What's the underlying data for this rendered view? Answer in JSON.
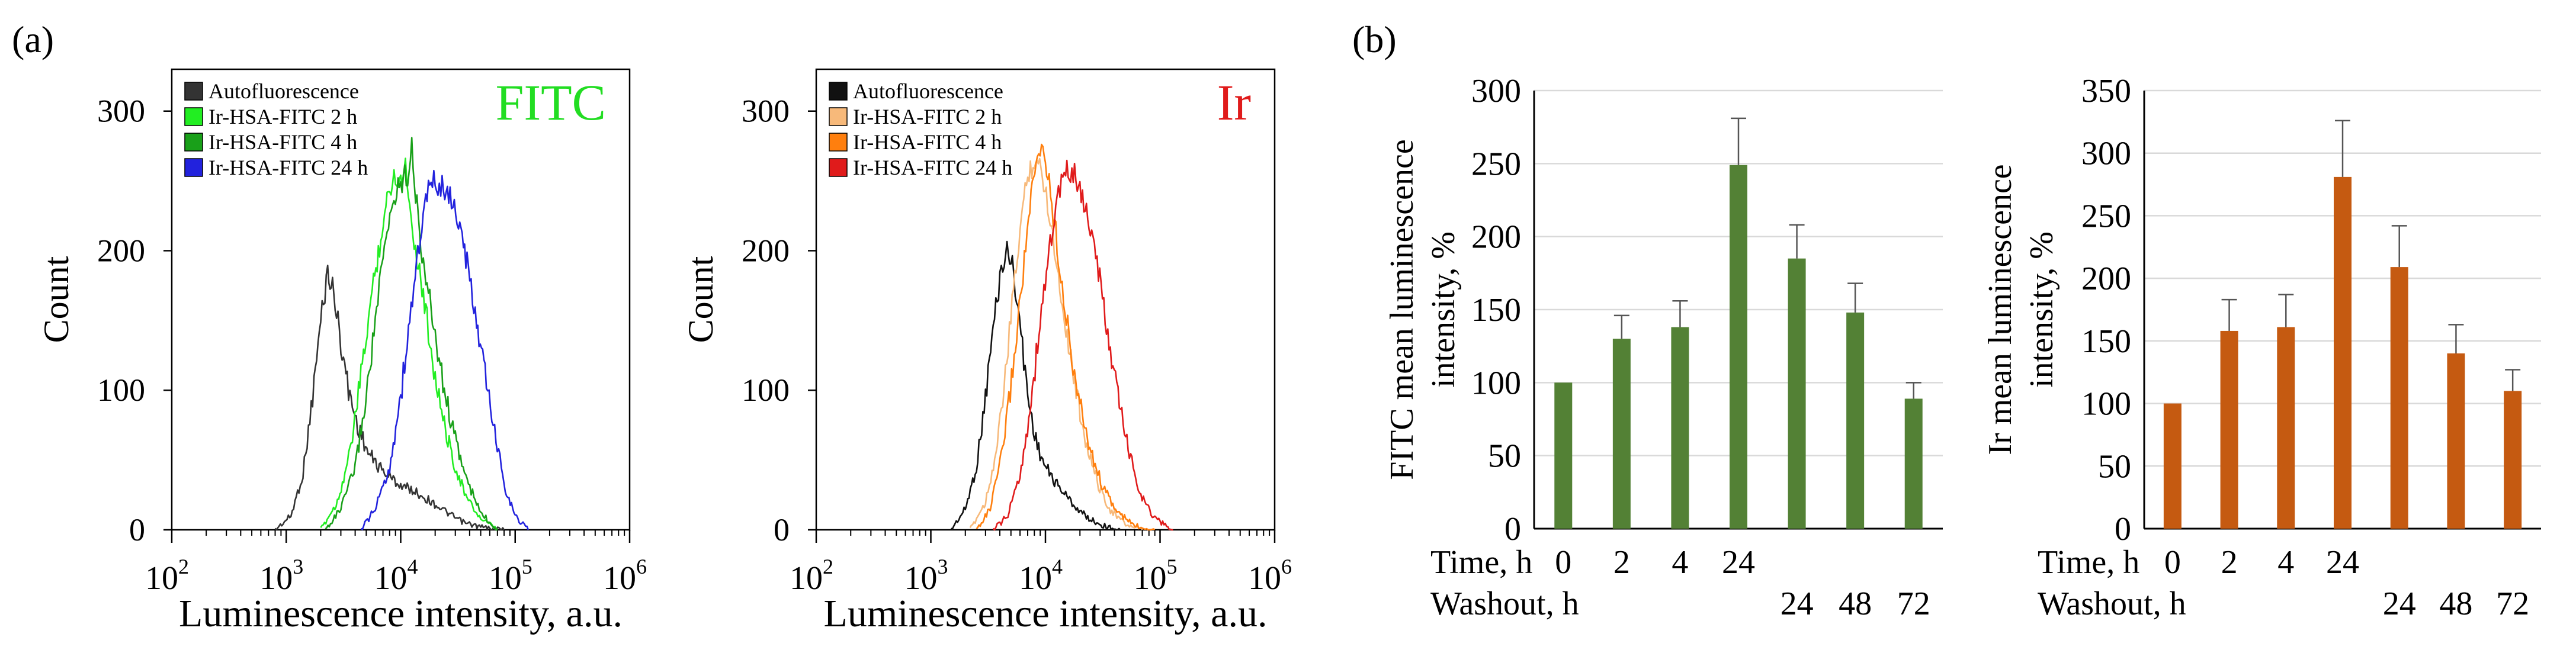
{
  "panels": {
    "a_label": "(a)",
    "b_label": "(b)"
  },
  "chart_data": [
    {
      "id": "hist-fitc",
      "type": "line",
      "title": "FITC",
      "title_color": "#22dd22",
      "xlabel": "Luminescence intensity, a.u.",
      "ylabel": "Count",
      "xscale": "log",
      "xlim": [
        100,
        1000000
      ],
      "ylim": [
        0,
        330
      ],
      "yticks": [
        0,
        100,
        200,
        300
      ],
      "xticks": [
        {
          "value": 100,
          "base": "10",
          "exp": "2"
        },
        {
          "value": 1000,
          "base": "10",
          "exp": "3"
        },
        {
          "value": 10000,
          "base": "10",
          "exp": "4"
        },
        {
          "value": 100000,
          "base": "10",
          "exp": "5"
        },
        {
          "value": 1000000,
          "base": "10",
          "exp": "6"
        }
      ],
      "legend_position": "top-left",
      "series": [
        {
          "name": "Autofluorescence",
          "color": "#333333",
          "points": [
            [
              800,
              0
            ],
            [
              1100,
              10
            ],
            [
              1400,
              40
            ],
            [
              1700,
              95
            ],
            [
              2000,
              150
            ],
            [
              2300,
              185
            ],
            [
              2600,
              170
            ],
            [
              3000,
              135
            ],
            [
              3500,
              100
            ],
            [
              4200,
              75
            ],
            [
              5200,
              55
            ],
            [
              6500,
              45
            ],
            [
              8000,
              38
            ],
            [
              10000,
              32
            ],
            [
              13000,
              28
            ],
            [
              17000,
              22
            ],
            [
              22000,
              16
            ],
            [
              28000,
              10
            ],
            [
              36000,
              5
            ],
            [
              50000,
              2
            ],
            [
              80000,
              0
            ]
          ]
        },
        {
          "name": "Ir-HSA-FITC 2 h",
          "color": "#22ee22",
          "points": [
            [
              2000,
              0
            ],
            [
              2800,
              20
            ],
            [
              3600,
              55
            ],
            [
              4500,
              110
            ],
            [
              5500,
              165
            ],
            [
              6700,
              210
            ],
            [
              8000,
              245
            ],
            [
              9000,
              255
            ],
            [
              10000,
              250
            ],
            [
              11000,
              262
            ],
            [
              12000,
              235
            ],
            [
              13500,
              200
            ],
            [
              15000,
              180
            ],
            [
              17000,
              150
            ],
            [
              20000,
              110
            ],
            [
              24000,
              75
            ],
            [
              30000,
              45
            ],
            [
              38000,
              22
            ],
            [
              50000,
              8
            ],
            [
              70000,
              0
            ]
          ]
        },
        {
          "name": "Ir-HSA-FITC 4 h",
          "color": "#19a019",
          "points": [
            [
              2200,
              0
            ],
            [
              3000,
              15
            ],
            [
              4000,
              45
            ],
            [
              5000,
              95
            ],
            [
              6000,
              150
            ],
            [
              7200,
              200
            ],
            [
              8500,
              235
            ],
            [
              10000,
              250
            ],
            [
              11500,
              255
            ],
            [
              12500,
              278
            ],
            [
              13500,
              240
            ],
            [
              15000,
              205
            ],
            [
              17000,
              175
            ],
            [
              20000,
              140
            ],
            [
              24000,
              100
            ],
            [
              30000,
              65
            ],
            [
              38000,
              35
            ],
            [
              50000,
              12
            ],
            [
              70000,
              0
            ]
          ]
        },
        {
          "name": "Ir-HSA-FITC 24 h",
          "color": "#2222dd",
          "points": [
            [
              4500,
              0
            ],
            [
              6000,
              15
            ],
            [
              8000,
              45
            ],
            [
              10000,
              95
            ],
            [
              12000,
              150
            ],
            [
              14500,
              205
            ],
            [
              17000,
              240
            ],
            [
              20000,
              250
            ],
            [
              23000,
              245
            ],
            [
              27000,
              240
            ],
            [
              32000,
              220
            ],
            [
              38000,
              190
            ],
            [
              46000,
              150
            ],
            [
              56000,
              105
            ],
            [
              68000,
              65
            ],
            [
              82000,
              30
            ],
            [
              100000,
              10
            ],
            [
              130000,
              0
            ]
          ]
        }
      ]
    },
    {
      "id": "hist-ir",
      "type": "line",
      "title": "Ir",
      "title_color": "#e01b1b",
      "xlabel": "Luminescence intensity, a.u.",
      "ylabel": "Count",
      "xscale": "log",
      "xlim": [
        100,
        1000000
      ],
      "ylim": [
        0,
        330
      ],
      "yticks": [
        0,
        100,
        200,
        300
      ],
      "xticks": [
        {
          "value": 100,
          "base": "10",
          "exp": "2"
        },
        {
          "value": 1000,
          "base": "10",
          "exp": "3"
        },
        {
          "value": 10000,
          "base": "10",
          "exp": "4"
        },
        {
          "value": 100000,
          "base": "10",
          "exp": "5"
        },
        {
          "value": 1000000,
          "base": "10",
          "exp": "6"
        }
      ],
      "legend_position": "top-left",
      "series": [
        {
          "name": "Autofluorescence",
          "color": "#111111",
          "points": [
            [
              1500,
              0
            ],
            [
              2000,
              15
            ],
            [
              2500,
              45
            ],
            [
              3000,
              95
            ],
            [
              3500,
              145
            ],
            [
              4000,
              180
            ],
            [
              4500,
              200
            ],
            [
              5000,
              195
            ],
            [
              5600,
              170
            ],
            [
              6300,
              130
            ],
            [
              7200,
              90
            ],
            [
              8500,
              60
            ],
            [
              10000,
              45
            ],
            [
              12000,
              35
            ],
            [
              15000,
              25
            ],
            [
              19000,
              15
            ],
            [
              24000,
              8
            ],
            [
              32000,
              3
            ],
            [
              45000,
              0
            ]
          ]
        },
        {
          "name": "Ir-HSA-FITC 2 h",
          "color": "#f7b97a",
          "points": [
            [
              2200,
              0
            ],
            [
              3000,
              20
            ],
            [
              3800,
              60
            ],
            [
              4600,
              120
            ],
            [
              5400,
              180
            ],
            [
              6300,
              230
            ],
            [
              7200,
              258
            ],
            [
              8200,
              265
            ],
            [
              9400,
              255
            ],
            [
              11000,
              225
            ],
            [
              13000,
              180
            ],
            [
              15500,
              140
            ],
            [
              19000,
              95
            ],
            [
              23000,
              60
            ],
            [
              29000,
              32
            ],
            [
              37000,
              14
            ],
            [
              50000,
              4
            ],
            [
              70000,
              0
            ]
          ]
        },
        {
          "name": "Ir-HSA-FITC 4 h",
          "color": "#ff7f0e",
          "points": [
            [
              2500,
              0
            ],
            [
              3300,
              15
            ],
            [
              4200,
              55
            ],
            [
              5200,
              115
            ],
            [
              6200,
              175
            ],
            [
              7300,
              230
            ],
            [
              8500,
              265
            ],
            [
              9500,
              275
            ],
            [
              10500,
              255
            ],
            [
              12000,
              220
            ],
            [
              14000,
              175
            ],
            [
              16500,
              130
            ],
            [
              20000,
              90
            ],
            [
              25000,
              55
            ],
            [
              32000,
              30
            ],
            [
              42000,
              13
            ],
            [
              60000,
              3
            ],
            [
              90000,
              0
            ]
          ]
        },
        {
          "name": "Ir-HSA-FITC 24 h",
          "color": "#e01b1b",
          "points": [
            [
              3500,
              0
            ],
            [
              4700,
              10
            ],
            [
              6000,
              40
            ],
            [
              7500,
              90
            ],
            [
              9000,
              150
            ],
            [
              11000,
              205
            ],
            [
              13000,
              240
            ],
            [
              15000,
              255
            ],
            [
              17000,
              258
            ],
            [
              20000,
              245
            ],
            [
              24000,
              220
            ],
            [
              29000,
              185
            ],
            [
              35000,
              140
            ],
            [
              43000,
              95
            ],
            [
              54000,
              55
            ],
            [
              68000,
              25
            ],
            [
              90000,
              8
            ],
            [
              130000,
              0
            ]
          ]
        }
      ]
    },
    {
      "id": "bar-fitc",
      "type": "bar",
      "title": "",
      "color": "#538135",
      "ylabel_line1": "FITC mean luminescence",
      "ylabel_line2": "intensity, %",
      "ylim": [
        0,
        300
      ],
      "yticks": [
        0,
        50,
        100,
        150,
        200,
        250,
        300
      ],
      "grid": true,
      "row1_label": "Time, h",
      "row2_label": "Washout, h",
      "time_labels": [
        "0",
        "2",
        "4",
        "24",
        "",
        "",
        ""
      ],
      "washout_labels": [
        "",
        "",
        "",
        "",
        "24",
        "48",
        "72"
      ],
      "values": [
        100,
        130,
        138,
        249,
        185,
        148,
        89
      ],
      "errors": [
        0,
        16,
        18,
        32,
        23,
        20,
        11
      ]
    },
    {
      "id": "bar-ir",
      "type": "bar",
      "title": "",
      "color": "#c55a11",
      "ylabel_line1": "Ir mean luminescence",
      "ylabel_line2": "intensity, %",
      "ylim": [
        0,
        350
      ],
      "yticks": [
        0,
        50,
        100,
        150,
        200,
        250,
        300,
        350
      ],
      "grid": true,
      "row1_label": "Time, h",
      "row2_label": "Washout, h",
      "time_labels": [
        "0",
        "2",
        "4",
        "24",
        "",
        "",
        ""
      ],
      "washout_labels": [
        "",
        "",
        "",
        "",
        "24",
        "48",
        "72"
      ],
      "values": [
        100,
        158,
        161,
        281,
        209,
        140,
        110
      ],
      "errors": [
        0,
        25,
        26,
        45,
        33,
        23,
        17
      ]
    }
  ]
}
